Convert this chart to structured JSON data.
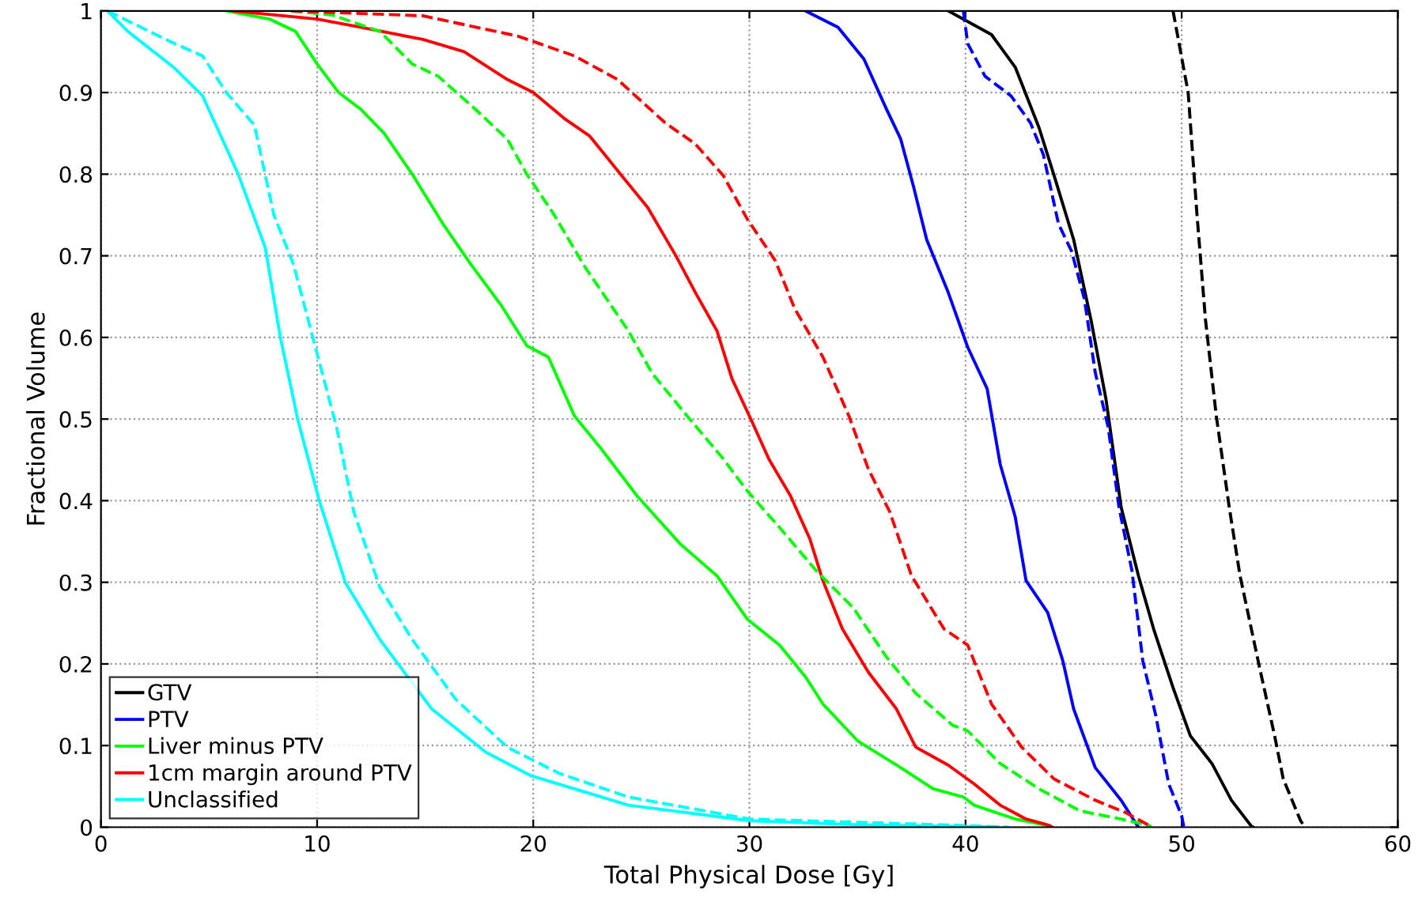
{
  "chart_data": {
    "type": "line",
    "xlabel": "Total Physical Dose [Gy]",
    "ylabel": "Fractional Volume",
    "xlim": [
      0,
      60
    ],
    "ylim": [
      0,
      1
    ],
    "xticks": [
      0,
      10,
      20,
      30,
      40,
      50,
      60
    ],
    "yticks": [
      0,
      0.1,
      0.2,
      0.3,
      0.4,
      0.5,
      0.6,
      0.7,
      0.8,
      0.9,
      1
    ],
    "grid": true,
    "legend": "bottom left",
    "marker": "none",
    "series": [
      {
        "name": "GTV",
        "color": "#000000",
        "line_style": "solid",
        "x": [
          39.2,
          41.2,
          42.3,
          43.4,
          44.1,
          45.0,
          45.8,
          46.5,
          47.2,
          48.0,
          48.7,
          49.6,
          50.4,
          51.4,
          52.3,
          53.2,
          53.3
        ],
        "values": [
          1,
          0.971,
          0.931,
          0.857,
          0.798,
          0.72,
          0.622,
          0.524,
          0.392,
          0.308,
          0.243,
          0.171,
          0.112,
          0.078,
          0.033,
          0.002,
          0
        ]
      },
      {
        "name": "PTV",
        "color": "#0000ff",
        "line_style": "solid",
        "x": [
          32.6,
          34.1,
          35.3,
          36.3,
          37.0,
          37.6,
          38.2,
          39.2,
          40.1,
          41.0,
          41.6,
          42.3,
          42.8,
          43.8,
          44.5,
          45.0,
          46.0,
          47.2,
          47.8,
          48.0
        ],
        "values": [
          1,
          0.98,
          0.941,
          0.882,
          0.843,
          0.784,
          0.72,
          0.655,
          0.588,
          0.537,
          0.445,
          0.38,
          0.302,
          0.263,
          0.204,
          0.145,
          0.073,
          0.033,
          0.008,
          0
        ]
      },
      {
        "name": "Liver minus PTV",
        "color": "#00ff00",
        "line_style": "solid",
        "x": [
          5.8,
          7.8,
          9.0,
          10,
          11,
          12,
          13.1,
          14.4,
          15.8,
          17.1,
          18.5,
          19.7,
          20.7,
          21.9,
          23.1,
          24.8,
          26.8,
          28.5,
          29.9,
          31.4,
          32.6,
          33.4,
          35,
          37,
          38.5,
          39.9,
          40.4,
          42.3,
          43.8,
          44
        ],
        "values": [
          1,
          0.99,
          0.975,
          0.935,
          0.9,
          0.88,
          0.85,
          0.8,
          0.74,
          0.69,
          0.64,
          0.59,
          0.576,
          0.504,
          0.465,
          0.406,
          0.347,
          0.308,
          0.255,
          0.223,
          0.184,
          0.151,
          0.106,
          0.073,
          0.047,
          0.037,
          0.027,
          0.01,
          0.002,
          0
        ]
      },
      {
        "name": "1cm margin around PTV",
        "color": "#ff0000",
        "line_style": "solid",
        "x": [
          6.1,
          10,
          12,
          14.9,
          16.8,
          18.8,
          20,
          21.5,
          22.6,
          24.1,
          25.3,
          26.6,
          27.5,
          28.5,
          29.2,
          30.1,
          30.9,
          31.9,
          32.8,
          33.4,
          34.3,
          35.5,
          36.8,
          37.7,
          39.2,
          40.4,
          41.6,
          42.8,
          43.9,
          44
        ],
        "values": [
          1,
          0.99,
          0.98,
          0.965,
          0.95,
          0.916,
          0.9,
          0.867,
          0.847,
          0.798,
          0.759,
          0.7,
          0.655,
          0.608,
          0.549,
          0.498,
          0.451,
          0.406,
          0.353,
          0.302,
          0.243,
          0.19,
          0.145,
          0.098,
          0.076,
          0.053,
          0.027,
          0.01,
          0.002,
          0
        ]
      },
      {
        "name": "Unclassified",
        "color": "#00ffff",
        "line_style": "solid",
        "x": [
          0.3,
          1.24,
          3.4,
          4.7,
          6.35,
          7.6,
          8.3,
          9.1,
          10.1,
          11.3,
          12.9,
          15.3,
          17.8,
          19.9,
          24.4,
          30,
          35,
          41.5
        ],
        "values": [
          1,
          0.975,
          0.93,
          0.896,
          0.8,
          0.71,
          0.6,
          0.5,
          0.4,
          0.3,
          0.23,
          0.145,
          0.092,
          0.063,
          0.027,
          0.008,
          0.003,
          0
        ]
      },
      {
        "color": "#000000",
        "line_style": "dashed",
        "x": [
          49.6,
          50.3,
          50.7,
          51.1,
          51.6,
          52.2,
          52.7,
          53.6,
          54.3,
          54.7,
          55.5,
          55.7
        ],
        "values": [
          1,
          0.9,
          0.753,
          0.622,
          0.504,
          0.392,
          0.308,
          0.196,
          0.112,
          0.059,
          0.008,
          0
        ]
      },
      {
        "color": "#0000ff",
        "line_style": "dashed",
        "x": [
          39.9,
          40.1,
          40.9,
          42.1,
          43,
          43.6,
          44.3,
          44.9,
          45.5,
          46,
          46.6,
          47.1,
          47.7,
          48.2,
          48.8,
          49.4,
          50,
          50.1
        ],
        "values": [
          1,
          0.96,
          0.92,
          0.896,
          0.863,
          0.824,
          0.739,
          0.706,
          0.647,
          0.557,
          0.49,
          0.392,
          0.314,
          0.204,
          0.137,
          0.053,
          0.014,
          0
        ]
      },
      {
        "color": "#00ff00",
        "line_style": "dashed",
        "x": [
          8.8,
          10.7,
          12.9,
          14.4,
          15.6,
          17.3,
          18.8,
          19.7,
          20.9,
          22.4,
          24.4,
          25.5,
          27.3,
          28.8,
          29.9,
          31.4,
          33.1,
          34.8,
          36.3,
          37.7,
          39.4,
          40.1,
          41.6,
          43.4,
          45.3,
          47.2,
          48.5,
          48.6
        ],
        "values": [
          1,
          0.995,
          0.975,
          0.935,
          0.92,
          0.88,
          0.843,
          0.8,
          0.753,
          0.686,
          0.608,
          0.556,
          0.498,
          0.451,
          0.412,
          0.367,
          0.314,
          0.269,
          0.21,
          0.164,
          0.125,
          0.118,
          0.078,
          0.047,
          0.02,
          0.01,
          0.002,
          0
        ]
      },
      {
        "color": "#ff0000",
        "line_style": "dashed",
        "x": [
          8.8,
          14.9,
          19.3,
          21.9,
          23.9,
          26.1,
          27.5,
          28.8,
          29.9,
          31.2,
          32.1,
          33.4,
          34.6,
          35.5,
          36.5,
          37.5,
          39.0,
          40.1,
          41.2,
          42.6,
          44.1,
          46.0,
          47.4,
          48.5,
          48.6
        ],
        "values": [
          1,
          0.994,
          0.969,
          0.945,
          0.916,
          0.863,
          0.837,
          0.798,
          0.745,
          0.694,
          0.635,
          0.576,
          0.504,
          0.439,
          0.386,
          0.308,
          0.243,
          0.223,
          0.151,
          0.098,
          0.059,
          0.033,
          0.018,
          0.002,
          0
        ]
      },
      {
        "color": "#00ffff",
        "line_style": "dashed",
        "x": [
          0.3,
          3.4,
          4.7,
          5.8,
          7.1,
          8.0,
          8.9,
          10,
          10.9,
          11.7,
          12.9,
          14.4,
          16.4,
          18.8,
          21.2,
          24.4,
          30,
          40,
          42
        ],
        "values": [
          1,
          0.96,
          0.945,
          0.9,
          0.86,
          0.75,
          0.69,
          0.58,
          0.49,
          0.386,
          0.294,
          0.23,
          0.157,
          0.098,
          0.066,
          0.037,
          0.01,
          0.002,
          0
        ]
      }
    ]
  }
}
